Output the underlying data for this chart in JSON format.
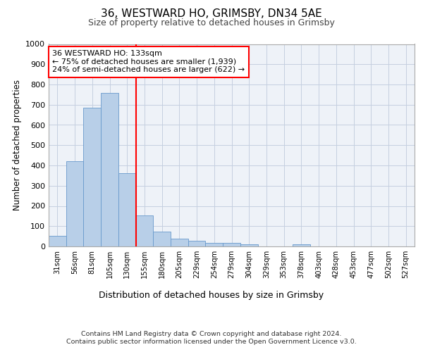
{
  "title1": "36, WESTWARD HO, GRIMSBY, DN34 5AE",
  "title2": "Size of property relative to detached houses in Grimsby",
  "xlabel": "Distribution of detached houses by size in Grimsby",
  "ylabel": "Number of detached properties",
  "categories": [
    "31sqm",
    "56sqm",
    "81sqm",
    "105sqm",
    "130sqm",
    "155sqm",
    "180sqm",
    "205sqm",
    "229sqm",
    "254sqm",
    "279sqm",
    "304sqm",
    "329sqm",
    "353sqm",
    "378sqm",
    "403sqm",
    "428sqm",
    "453sqm",
    "477sqm",
    "502sqm",
    "527sqm"
  ],
  "values": [
    52,
    422,
    685,
    758,
    362,
    153,
    74,
    40,
    28,
    17,
    17,
    10,
    0,
    0,
    10,
    0,
    0,
    0,
    0,
    0,
    0
  ],
  "bar_color": "#b8cfe8",
  "bar_edge_color": "#6899cc",
  "vline_color": "red",
  "vline_pos": 4.5,
  "annotation_text": "36 WESTWARD HO: 133sqm\n← 75% of detached houses are smaller (1,939)\n24% of semi-detached houses are larger (622) →",
  "annotation_box_color": "white",
  "annotation_box_edge": "red",
  "ylim": [
    0,
    1000
  ],
  "yticks": [
    0,
    100,
    200,
    300,
    400,
    500,
    600,
    700,
    800,
    900,
    1000
  ],
  "footer_line1": "Contains HM Land Registry data © Crown copyright and database right 2024.",
  "footer_line2": "Contains public sector information licensed under the Open Government Licence v3.0.",
  "bg_color": "#eef2f8",
  "grid_color": "#c5cfe0",
  "fig_bg": "#ffffff"
}
